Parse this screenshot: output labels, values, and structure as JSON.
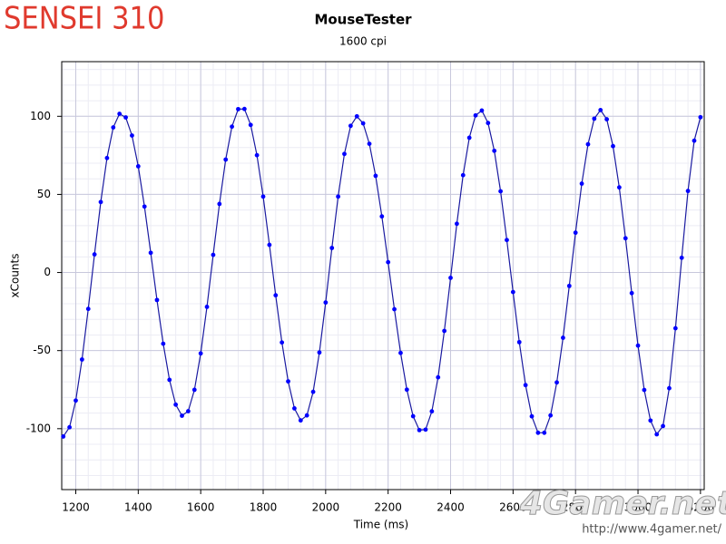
{
  "overlay": {
    "logo": "SENSEI 310",
    "watermark": "4Gamer.net",
    "url": "http://www.4gamer.net/"
  },
  "chart_data": {
    "type": "line",
    "title": "MouseTester",
    "subtitle": "1600 cpi",
    "x_label": "Time (ms)",
    "y_label": "xCounts",
    "x": [
      1160,
      1180,
      1200,
      1220,
      1240,
      1260,
      1280,
      1300,
      1320,
      1340,
      1360,
      1380,
      1400,
      1420,
      1440,
      1460,
      1480,
      1500,
      1520,
      1540,
      1560,
      1580,
      1600,
      1620,
      1640,
      1660,
      1680,
      1700,
      1720,
      1740,
      1760,
      1780,
      1800,
      1820,
      1840,
      1860,
      1880,
      1900,
      1920,
      1940,
      1960,
      1980,
      2000,
      2020,
      2040,
      2060,
      2080,
      2100,
      2120,
      2140,
      2160,
      2180,
      2200,
      2220,
      2240,
      2260,
      2280,
      2300,
      2320,
      2340,
      2360,
      2380,
      2400,
      2420,
      2440,
      2460,
      2480,
      2500,
      2520,
      2540,
      2560,
      2580,
      2600,
      2620,
      2640,
      2660,
      2680,
      2700,
      2720,
      2740,
      2760,
      2780,
      2800,
      2820,
      2840,
      2860,
      2880,
      2900,
      2920,
      2940,
      2960,
      2980,
      3000,
      3020,
      3040,
      3060,
      3080,
      3100,
      3120,
      3140,
      3160,
      3180,
      3200
    ],
    "series": [
      {
        "name": "xCounts",
        "color": "#0000ff",
        "values": [
          -105,
          -99.1,
          -82,
          -55.7,
          -23.3,
          11.6,
          45.1,
          73.3,
          92.9,
          101.6,
          99.3,
          87.7,
          68,
          42.2,
          12.6,
          -17.6,
          -45.6,
          -68.7,
          -84.6,
          -91.7,
          -88.8,
          -75.1,
          -51.8,
          -22,
          11.3,
          43.9,
          72.3,
          93.4,
          104.6,
          104.7,
          94.5,
          75.1,
          48.6,
          17.7,
          -14.6,
          -44.8,
          -69.7,
          -87,
          -94.7,
          -91.5,
          -76.4,
          -51.2,
          -19.2,
          15.7,
          48.6,
          75.9,
          93.9,
          100,
          95.5,
          82.4,
          61.9,
          35.9,
          6.6,
          -23.5,
          -51.5,
          -75,
          -92,
          -100.9,
          -100.6,
          -88.9,
          -67.1,
          -37.4,
          -3.4,
          31.2,
          62.3,
          86.3,
          100.6,
          103.7,
          95.7,
          77.9,
          52,
          20.8,
          -12.5,
          -44.6,
          -72.1,
          -92.1,
          -102.6,
          -102.6,
          -91.5,
          -70.4,
          -41.8,
          -8.6,
          25.5,
          56.9,
          82.1,
          98.5,
          104,
          98.1,
          80.9,
          54.5,
          21.9,
          -13.2,
          -46.8,
          -75.2,
          -94.8,
          -103.6,
          -98.3,
          -74.1,
          -35.7,
          9.4,
          52.2,
          84.4,
          99.4
        ]
      }
    ],
    "xlim": [
      1155,
      3212
    ],
    "xticks": [
      1200,
      1400,
      1600,
      1800,
      2000,
      2200,
      2400,
      2600,
      2800,
      3000,
      3200
    ],
    "ylim": [
      -139,
      135
    ],
    "yticks": [
      -100,
      -50,
      0,
      50,
      100
    ],
    "grid": true
  }
}
